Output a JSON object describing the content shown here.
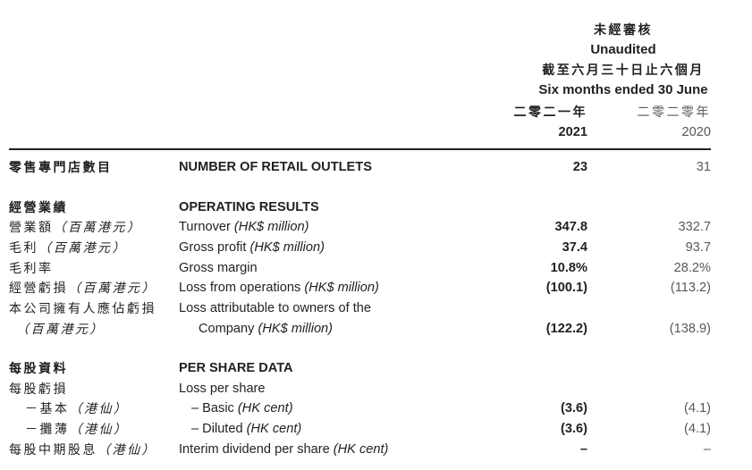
{
  "header": {
    "unaudited_zh": "未經審核",
    "unaudited_en": "Unaudited",
    "period_zh": "截至六月三十日止六個月",
    "period_en": "Six months ended 30 June",
    "year_2021_zh": "二零二一年",
    "year_2021": "2021",
    "year_2020_zh": "二零二零年",
    "year_2020": "2020"
  },
  "colors": {
    "text_primary": "#231f20",
    "text_secondary": "#58595b",
    "rule": "#231f20",
    "background": "#ffffff"
  },
  "table": {
    "rows": [
      {
        "type": "data",
        "bold": true,
        "zh": "零售專門店數目",
        "en": "NUMBER OF RETAIL OUTLETS",
        "v2021": "23",
        "v2020": "31"
      },
      {
        "type": "spacer"
      },
      {
        "type": "section",
        "zh": "經營業績",
        "en": "OPERATING RESULTS"
      },
      {
        "type": "data",
        "zh": "營業額",
        "zh_it": "（百萬港元）",
        "en": "Turnover ",
        "en_it": "(HK$ million)",
        "v2021": "347.8",
        "v2020": "332.7"
      },
      {
        "type": "data",
        "zh": "毛利",
        "zh_it": "（百萬港元）",
        "en": "Gross profit ",
        "en_it": "(HK$ million)",
        "v2021": "37.4",
        "v2020": "93.7"
      },
      {
        "type": "data",
        "zh": "毛利率",
        "en": "Gross margin",
        "v2021": "10.8%",
        "v2020": "28.2%"
      },
      {
        "type": "data",
        "zh": "經營虧損",
        "zh_it": "（百萬港元）",
        "en": "Loss from operations ",
        "en_it": "(HK$ million)",
        "v2021": "(100.1)",
        "v2020": "(113.2)"
      },
      {
        "type": "data",
        "zh": "本公司擁有人應佔虧損",
        "en": "Loss attributable to owners of the"
      },
      {
        "type": "data",
        "zh_it": "（百萬港元）",
        "en": "Company ",
        "en_it": "(HK$ million)",
        "v2021": "(122.2)",
        "v2020": "(138.9)",
        "ind_zh": 8,
        "ind_en": 22
      },
      {
        "type": "spacer"
      },
      {
        "type": "section",
        "zh": "每股資料",
        "en": "PER SHARE DATA"
      },
      {
        "type": "data",
        "zh": "每股虧損",
        "en": "Loss per share"
      },
      {
        "type": "data",
        "zh": "－基本",
        "zh_it": "（港仙）",
        "en": "– Basic ",
        "en_it": "(HK cent)",
        "v2021": "(3.6)",
        "v2020": "(4.1)",
        "ind_zh": 18,
        "ind_en": 14
      },
      {
        "type": "data",
        "zh": "－攤薄",
        "zh_it": "（港仙）",
        "en": "– Diluted ",
        "en_it": "(HK cent)",
        "v2021": "(3.6)",
        "v2020": "(4.1)",
        "ind_zh": 18,
        "ind_en": 14
      },
      {
        "type": "data",
        "zh": "每股中期股息",
        "zh_it": "（港仙）",
        "en": "Interim dividend per share ",
        "en_it": "(HK cent)",
        "v2021": "–",
        "v2020": "–"
      }
    ]
  }
}
